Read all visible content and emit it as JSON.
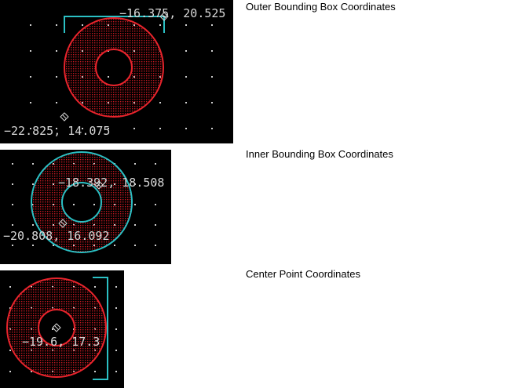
{
  "panels": [
    {
      "caption": "Outer Bounding Box Coordinates",
      "labels": [
        "−16.375, 20.525",
        "−22.825, 14.075"
      ]
    },
    {
      "caption": "Inner Bounding Box Coordinates",
      "labels": [
        "−18.392, 18.508",
        "−20.808, 16.092"
      ]
    },
    {
      "caption": "Center Point Coordinates",
      "labels": [
        "−19.6, 17.3"
      ]
    }
  ],
  "colors": {
    "background": "#000000",
    "ring_outline": "#e8242c",
    "ring_fill": "#b0161d",
    "highlight": "#2bc0c4",
    "grid_dot": "#cfcfcf",
    "text": "#d8d8d8"
  }
}
